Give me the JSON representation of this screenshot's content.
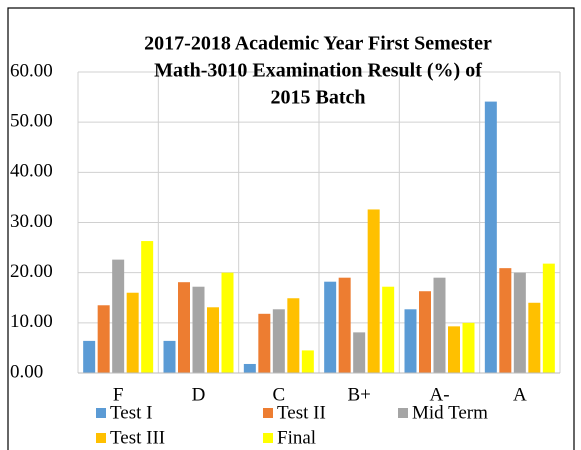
{
  "chart_data": {
    "type": "bar",
    "title": [
      "2017-2018 Academic Year First Semester",
      "Math-3010 Examination Result (%) of",
      "2015  Batch"
    ],
    "categories": [
      "F",
      "D",
      "C",
      "B+",
      "A-",
      "A"
    ],
    "series": [
      {
        "name": "Test I",
        "color": "#5b9bd5",
        "values": [
          6.4,
          6.4,
          1.8,
          18.2,
          12.7,
          54.1
        ]
      },
      {
        "name": "Test II",
        "color": "#ed7d31",
        "values": [
          13.5,
          18.1,
          11.8,
          19.0,
          16.3,
          20.9
        ]
      },
      {
        "name": "Mid Term",
        "color": "#a5a5a5",
        "values": [
          22.6,
          17.2,
          12.7,
          8.1,
          19.0,
          20.0
        ]
      },
      {
        "name": "Test III",
        "color": "#ffc000",
        "values": [
          16.0,
          13.1,
          14.9,
          32.6,
          9.3,
          14.0
        ]
      },
      {
        "name": "Final",
        "color": "#ffff00",
        "values": [
          26.3,
          20.0,
          4.5,
          17.2,
          10.0,
          21.8
        ]
      }
    ],
    "ylim": [
      0,
      60
    ],
    "yticks": [
      {
        "value": 0,
        "label": "0.00"
      },
      {
        "value": 10,
        "label": "10.00"
      },
      {
        "value": 20,
        "label": "20.00"
      },
      {
        "value": 30,
        "label": "30.00"
      },
      {
        "value": 40,
        "label": "40.00"
      },
      {
        "value": 50,
        "label": "50.00"
      },
      {
        "value": 60,
        "label": "60.00"
      }
    ],
    "grid": true
  }
}
